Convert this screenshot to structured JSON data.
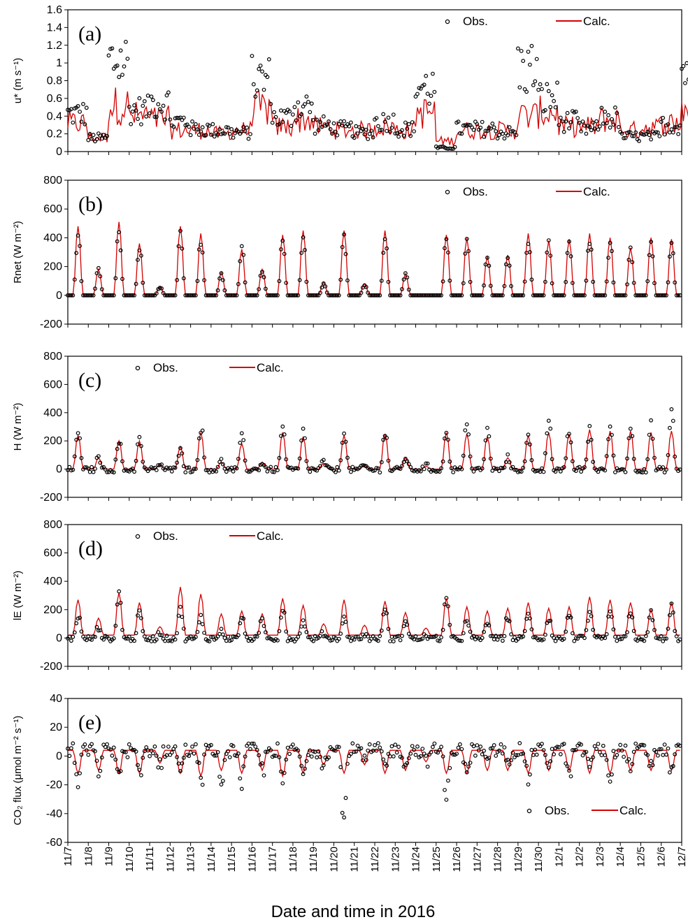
{
  "figure": {
    "xlabel": "Date and time in 2016",
    "date_ticks": [
      "11/7",
      "11/8",
      "11/9",
      "11/10",
      "11/11",
      "11/12",
      "11/13",
      "11/14",
      "11/15",
      "11/16",
      "11/17",
      "11/18",
      "11/19",
      "11/20",
      "11/21",
      "11/22",
      "11/23",
      "11/24",
      "11/25",
      "11/26",
      "11/27",
      "11/28",
      "11/29",
      "11/30",
      "12/1",
      "12/2",
      "12/3",
      "12/4",
      "12/5",
      "12/6",
      "12/7"
    ],
    "colors": {
      "obs": "#000000",
      "calc": "#d40000",
      "axis": "#000000"
    }
  },
  "chart_data": [
    {
      "type": "line",
      "panel_label": "(a)",
      "ylabel": "u* (m s⁻¹)",
      "ylim": [
        0,
        1.6
      ],
      "yticks": [
        0,
        0.2,
        0.4,
        0.6,
        0.8,
        1,
        1.2,
        1.4,
        1.6
      ],
      "ytick_labels": [
        "0",
        "0.2",
        "0.4",
        "0.6",
        "0.8",
        "1",
        "1.2",
        "1.4",
        "1.6"
      ],
      "legend_position": "top-right",
      "x_days": [
        0,
        1,
        2,
        3,
        4,
        5,
        6,
        7,
        8,
        9,
        10,
        11,
        12,
        13,
        14,
        15,
        16,
        17,
        18,
        19,
        20,
        21,
        22,
        23,
        24,
        25,
        26,
        27,
        28,
        29,
        30
      ],
      "series": [
        {
          "name": "Obs.",
          "kind": "scatter",
          "values": [
            0.5,
            0.18,
            1.2,
            0.55,
            0.65,
            0.4,
            0.3,
            0.28,
            0.25,
            0.95,
            0.45,
            0.6,
            0.35,
            0.3,
            0.25,
            0.4,
            0.3,
            0.85,
            0.05,
            0.3,
            0.3,
            0.25,
            1.1,
            0.7,
            0.4,
            0.3,
            0.45,
            0.2,
            0.2,
            0.35,
            1.1
          ]
        },
        {
          "name": "Calc.",
          "kind": "line",
          "values": [
            0.4,
            0.2,
            0.65,
            0.5,
            0.45,
            0.3,
            0.3,
            0.25,
            0.3,
            0.6,
            0.35,
            0.45,
            0.35,
            0.3,
            0.3,
            0.35,
            0.3,
            0.55,
            0.15,
            0.3,
            0.3,
            0.3,
            0.5,
            0.55,
            0.35,
            0.35,
            0.45,
            0.3,
            0.35,
            0.4,
            0.6
          ]
        }
      ]
    },
    {
      "type": "line",
      "panel_label": "(b)",
      "ylabel": "Rnet (W m⁻²)",
      "ylim": [
        -200,
        800
      ],
      "yticks": [
        -200,
        0,
        200,
        400,
        600,
        800
      ],
      "ytick_labels": [
        "-200",
        "0",
        "200",
        "400",
        "600",
        "800"
      ],
      "legend_position": "top-right",
      "x_days": [
        0,
        1,
        2,
        3,
        4,
        5,
        6,
        7,
        8,
        9,
        10,
        11,
        12,
        13,
        14,
        15,
        16,
        17,
        18,
        19,
        20,
        21,
        22,
        23,
        24,
        25,
        26,
        27,
        28,
        29
      ],
      "series": [
        {
          "name": "Obs.",
          "kind": "scatter-daily-peak",
          "values": [
            430,
            190,
            460,
            360,
            60,
            440,
            390,
            150,
            340,
            170,
            390,
            410,
            80,
            420,
            70,
            420,
            160,
            0,
            400,
            380,
            270,
            270,
            410,
            370,
            380,
            420,
            380,
            320,
            370,
            360
          ]
        },
        {
          "name": "Calc.",
          "kind": "line-daily-peak",
          "values": [
            480,
            180,
            510,
            360,
            60,
            480,
            430,
            160,
            320,
            180,
            420,
            450,
            90,
            450,
            80,
            450,
            150,
            0,
            420,
            400,
            270,
            280,
            430,
            380,
            390,
            430,
            400,
            330,
            400,
            390
          ]
        }
      ]
    },
    {
      "type": "line",
      "panel_label": "(c)",
      "ylabel": "H (W m⁻²)",
      "ylim": [
        -200,
        800
      ],
      "yticks": [
        -200,
        0,
        200,
        400,
        600,
        800
      ],
      "ytick_labels": [
        "-200",
        "0",
        "200",
        "400",
        "600",
        "800"
      ],
      "legend_position": "top-left",
      "x_days": [
        0,
        1,
        2,
        3,
        4,
        5,
        6,
        7,
        8,
        9,
        10,
        11,
        12,
        13,
        14,
        15,
        16,
        17,
        18,
        19,
        20,
        21,
        22,
        23,
        24,
        25,
        26,
        27,
        28,
        29
      ],
      "series": [
        {
          "name": "Obs.",
          "kind": "scatter-daily-peak",
          "values": [
            290,
            90,
            210,
            240,
            40,
            170,
            320,
            60,
            240,
            50,
            330,
            270,
            60,
            290,
            30,
            280,
            90,
            30,
            280,
            380,
            300,
            90,
            240,
            380,
            270,
            300,
            320,
            300,
            320,
            410
          ]
        },
        {
          "name": "Calc.",
          "kind": "line-daily-peak",
          "values": [
            240,
            80,
            200,
            200,
            30,
            160,
            260,
            50,
            180,
            50,
            260,
            230,
            40,
            240,
            30,
            250,
            80,
            20,
            260,
            250,
            230,
            80,
            240,
            260,
            250,
            280,
            270,
            270,
            260,
            270
          ]
        }
      ]
    },
    {
      "type": "line",
      "panel_label": "(d)",
      "ylabel": "lE (W m⁻²)",
      "ylim": [
        -200,
        800
      ],
      "yticks": [
        -200,
        0,
        200,
        400,
        600,
        800
      ],
      "ytick_labels": [
        "-200",
        "0",
        "200",
        "400",
        "600",
        "800"
      ],
      "legend_position": "top-left",
      "x_days": [
        0,
        1,
        2,
        3,
        4,
        5,
        6,
        7,
        8,
        9,
        10,
        11,
        12,
        13,
        14,
        15,
        16,
        17,
        18,
        19,
        20,
        21,
        22,
        23,
        24,
        25,
        26,
        27,
        28,
        29
      ],
      "series": [
        {
          "name": "Obs.",
          "kind": "scatter-daily-peak",
          "values": [
            170,
            80,
            340,
            200,
            40,
            210,
            150,
            60,
            150,
            130,
            220,
            130,
            40,
            150,
            30,
            230,
            130,
            20,
            320,
            130,
            120,
            150,
            200,
            150,
            180,
            190,
            190,
            180,
            180,
            230
          ]
        },
        {
          "name": "Calc.",
          "kind": "line-daily-peak",
          "values": [
            250,
            120,
            300,
            230,
            60,
            340,
            290,
            150,
            170,
            150,
            260,
            210,
            80,
            250,
            70,
            240,
            160,
            50,
            260,
            200,
            170,
            190,
            230,
            190,
            200,
            270,
            250,
            230,
            180,
            230
          ]
        }
      ]
    },
    {
      "type": "line",
      "panel_label": "(e)",
      "ylabel": "CO₂ flux (μmol m⁻² s⁻¹)",
      "ylim": [
        -60,
        40
      ],
      "yticks": [
        -60,
        -40,
        -20,
        0,
        20,
        40
      ],
      "ytick_labels": [
        "-60",
        "-40",
        "-20",
        "0",
        "20",
        "40"
      ],
      "legend_position": "bottom-right",
      "x_days": [
        0,
        1,
        2,
        3,
        4,
        5,
        6,
        7,
        8,
        9,
        10,
        11,
        12,
        13,
        14,
        15,
        16,
        17,
        18,
        19,
        20,
        21,
        22,
        23,
        24,
        25,
        26,
        27,
        28,
        29
      ],
      "series": [
        {
          "name": "Obs.",
          "kind": "scatter-daily-min",
          "values": [
            -20,
            -10,
            -15,
            -18,
            -5,
            -12,
            -18,
            -22,
            -22,
            -12,
            -22,
            -15,
            -5,
            -48,
            -5,
            -10,
            -5,
            -5,
            -28,
            -15,
            -10,
            -5,
            -18,
            -5,
            -15,
            -8,
            -22,
            -10,
            -8,
            -10
          ]
        },
        {
          "name": "Calc.",
          "kind": "line-daily-min",
          "values": [
            -12,
            -10,
            -12,
            -12,
            -5,
            -12,
            -14,
            -10,
            -12,
            -10,
            -14,
            -12,
            -6,
            -12,
            -6,
            -12,
            -10,
            -4,
            -12,
            -12,
            -10,
            -10,
            -12,
            -10,
            -10,
            -12,
            -12,
            -10,
            -10,
            -10
          ]
        }
      ]
    }
  ]
}
